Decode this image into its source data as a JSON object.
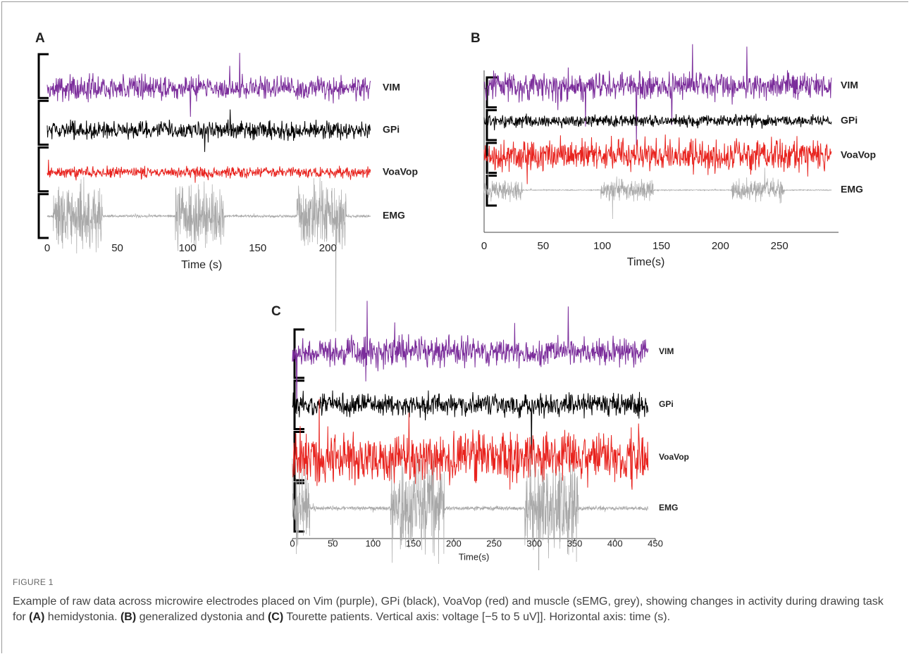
{
  "figure": {
    "panels": [
      {
        "label": "A",
        "xlabel": "Time (s)",
        "xlim": [
          0,
          235
        ],
        "xticks": [
          0,
          50,
          100,
          150,
          200
        ],
        "channels": [
          {
            "name": "VIM",
            "color": "#7b2d9b"
          },
          {
            "name": "GPi",
            "color": "#000000"
          },
          {
            "name": "VoaVop",
            "color": "#e8231e"
          },
          {
            "name": "EMG",
            "color": "#a8a8a8"
          }
        ]
      },
      {
        "label": "B",
        "xlabel": "Time(s)",
        "xlim": [
          0,
          300
        ],
        "xticks": [
          0,
          50,
          100,
          150,
          200,
          250
        ],
        "channels": [
          {
            "name": "VIM",
            "color": "#7b2d9b"
          },
          {
            "name": "GPi",
            "color": "#000000"
          },
          {
            "name": "VoaVop",
            "color": "#e8231e"
          },
          {
            "name": "EMG",
            "color": "#a8a8a8"
          }
        ]
      },
      {
        "label": "C",
        "xlabel": "Time(s)",
        "xlim": [
          0,
          450
        ],
        "xticks": [
          0,
          50,
          100,
          150,
          200,
          250,
          300,
          350,
          400,
          450
        ],
        "channels": [
          {
            "name": "VIM",
            "color": "#7b2d9b"
          },
          {
            "name": "GPi",
            "color": "#000000"
          },
          {
            "name": "VoaVop",
            "color": "#e8231e"
          },
          {
            "name": "EMG",
            "color": "#a8a8a8"
          }
        ]
      }
    ],
    "caption": {
      "label": "FIGURE 1",
      "parts": [
        "Example of raw data across microwire electrodes placed on Vim (purple), GPi (black), VoaVop (red) and muscle (sEMG, grey), showing changes in activity during drawing task for ",
        "(A)",
        " hemidystonia. ",
        "(B)",
        " generalized dystonia and ",
        "(C)",
        " Tourette patients. Vertical axis: voltage [−5 to 5 uV]]. Horizontal axis: time (s)."
      ]
    }
  }
}
